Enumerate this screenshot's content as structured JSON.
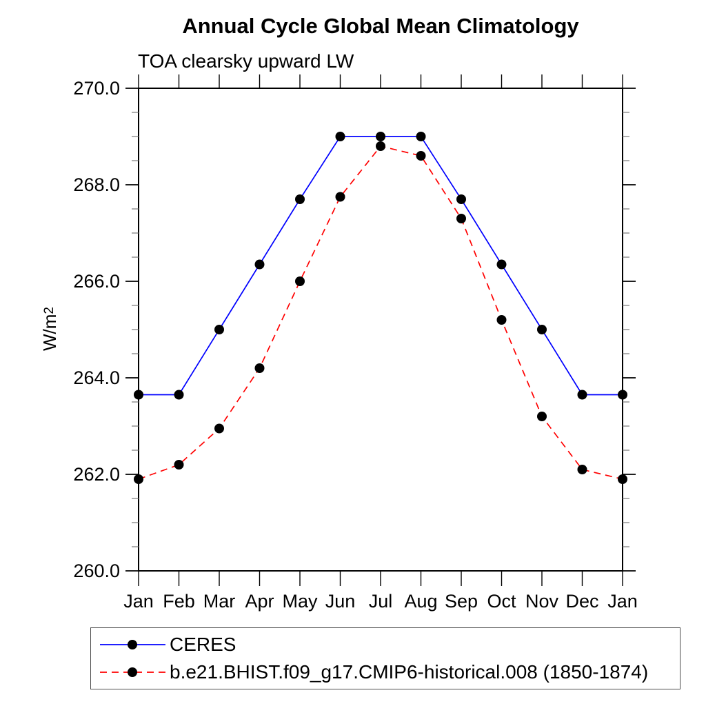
{
  "figure": {
    "title": "Annual Cycle Global Mean Climatology",
    "subtitle": "TOA clearsky upward LW"
  },
  "chart_data": {
    "type": "line",
    "title": "Annual Cycle Global Mean Climatology",
    "subtitle": "TOA clearsky upward LW",
    "ylabel_base": "W/m",
    "ylabel_exponent": "2",
    "categories": [
      "Jan",
      "Feb",
      "Mar",
      "Apr",
      "May",
      "Jun",
      "Jul",
      "Aug",
      "Sep",
      "Oct",
      "Nov",
      "Dec",
      "Jan"
    ],
    "ylim": [
      260.0,
      270.0
    ],
    "ytick_major_values": [
      260.0,
      262.0,
      264.0,
      266.0,
      268.0,
      270.0
    ],
    "ytick_labels": [
      "260.0",
      "262.0",
      "264.0",
      "266.0",
      "268.0",
      "270.0"
    ],
    "ytick_minor_step": 0.5,
    "grid": false,
    "legend_position": "bottom-left-box",
    "colors": {
      "ceres_line": "#0000ff",
      "model_line": "#ff0000",
      "marker": "#000000",
      "axis": "#000000",
      "minor_tick": "#777777"
    },
    "series": [
      {
        "name": "CERES",
        "line_color": "#0000ff",
        "line_style": "solid",
        "marker": "filled-circle",
        "marker_color": "#000000",
        "values": [
          263.65,
          263.65,
          265.0,
          266.35,
          267.7,
          269.0,
          269.0,
          269.0,
          267.7,
          266.35,
          265.0,
          263.65,
          263.65
        ]
      },
      {
        "name": "b.e21.BHIST.f09_g17.CMIP6-historical.008 (1850-1874)",
        "line_color": "#ff0000",
        "line_style": "dashed",
        "marker": "filled-circle",
        "marker_color": "#000000",
        "values": [
          261.9,
          262.2,
          262.95,
          264.2,
          266.0,
          267.75,
          268.8,
          268.6,
          267.3,
          265.2,
          263.2,
          262.1,
          261.9
        ]
      }
    ]
  }
}
